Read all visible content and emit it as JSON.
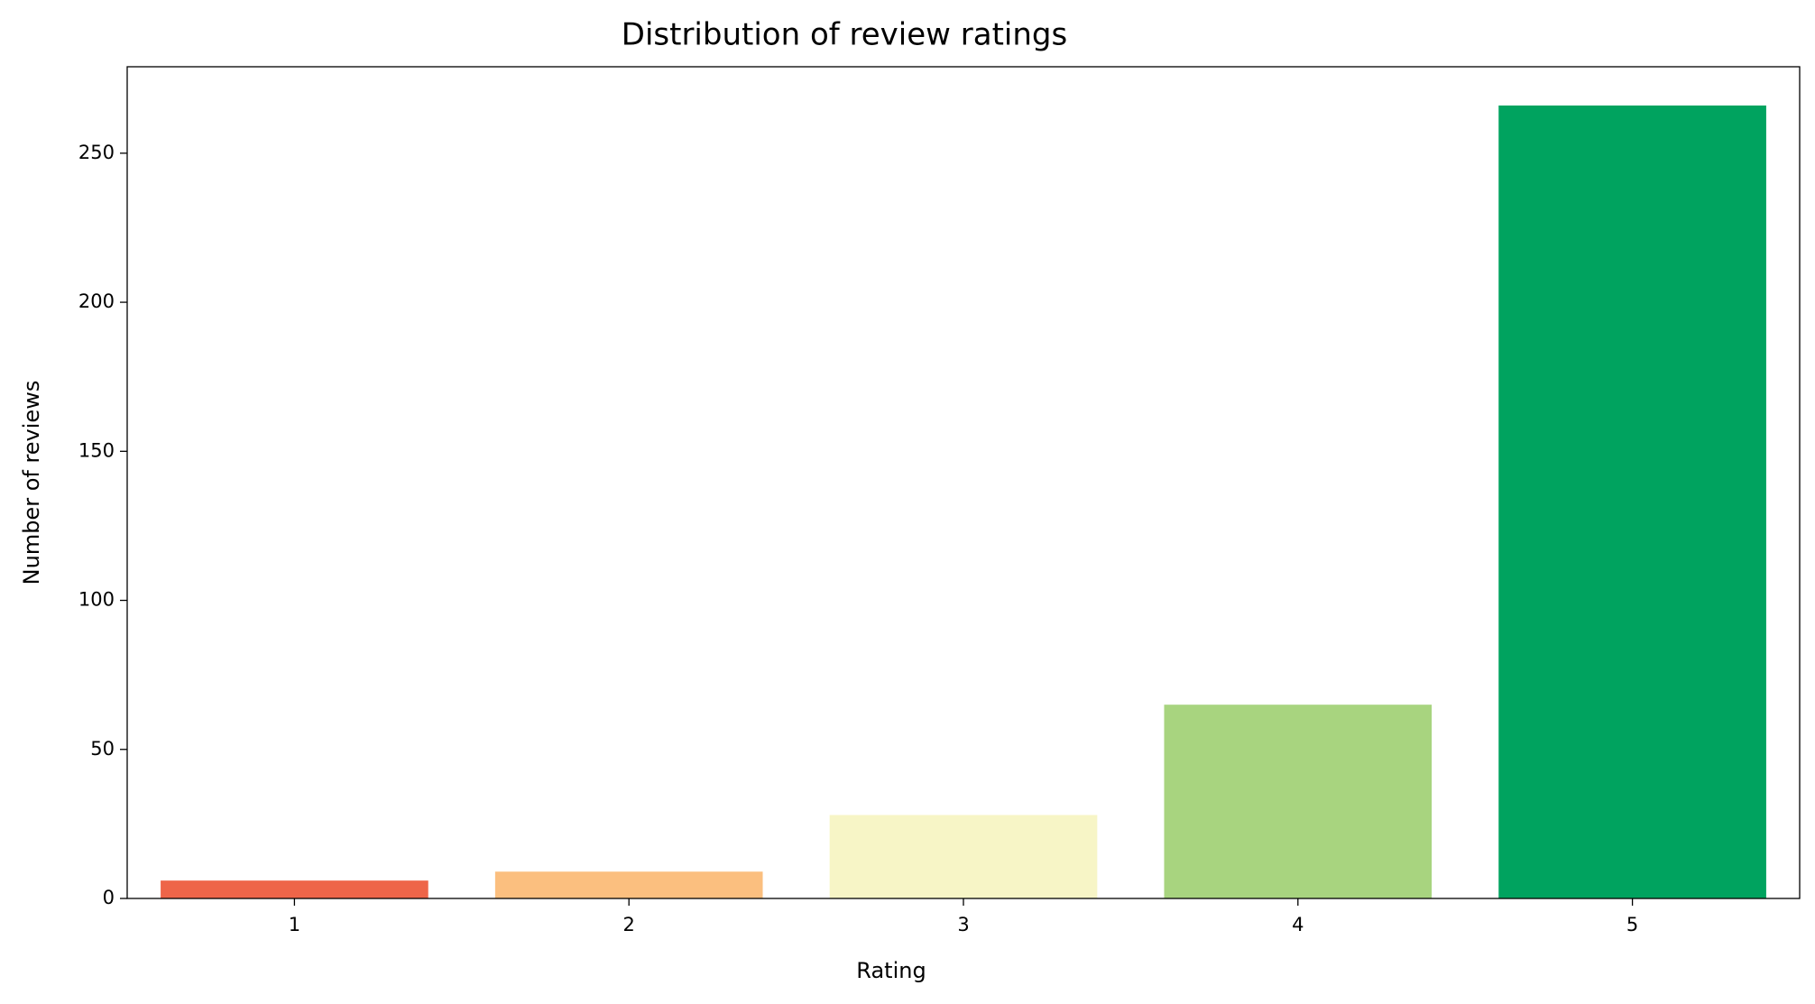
{
  "chart_data": {
    "type": "bar",
    "title": "Distribution of review ratings",
    "x_label": "Rating",
    "y_label": "Number of reviews",
    "categories": [
      "1",
      "2",
      "3",
      "4",
      "5"
    ],
    "values": [
      6,
      9,
      28,
      65,
      266
    ],
    "colors": [
      "#ee6549",
      "#fbbf7f",
      "#f7f5c6",
      "#a8d47f",
      "#00a35f"
    ],
    "ylim": [
      0,
      279
    ],
    "yticks": [
      0,
      50,
      100,
      150,
      200,
      250
    ]
  }
}
